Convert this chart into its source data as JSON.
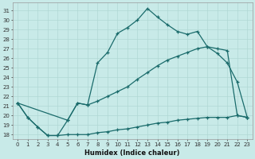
{
  "xlabel": "Humidex (Indice chaleur)",
  "bg_color": "#c8eae8",
  "line_color": "#1a6b6b",
  "grid_color": "#b0d8d4",
  "ylim": [
    17.5,
    31.8
  ],
  "xlim": [
    -0.5,
    23.5
  ],
  "yticks": [
    18,
    19,
    20,
    21,
    22,
    23,
    24,
    25,
    26,
    27,
    28,
    29,
    30,
    31
  ],
  "xticks": [
    0,
    1,
    2,
    3,
    4,
    5,
    6,
    7,
    8,
    9,
    10,
    11,
    12,
    13,
    14,
    15,
    16,
    17,
    18,
    19,
    20,
    21,
    22,
    23
  ],
  "line1_x": [
    0,
    1,
    2,
    3,
    4,
    5,
    6,
    7,
    8,
    9,
    10,
    11,
    12,
    13,
    14,
    15,
    16,
    17,
    18,
    19,
    20,
    21,
    22,
    23
  ],
  "line1_y": [
    21.3,
    19.8,
    18.8,
    17.9,
    17.9,
    18.0,
    18.0,
    18.0,
    18.2,
    18.3,
    18.5,
    18.6,
    18.8,
    19.0,
    19.2,
    19.3,
    19.5,
    19.6,
    19.7,
    19.8,
    19.8,
    19.8,
    20.0,
    19.8
  ],
  "line2_x": [
    0,
    1,
    2,
    3,
    4,
    5,
    6,
    7,
    8,
    9,
    10,
    11,
    12,
    13,
    14,
    15,
    16,
    17,
    18,
    19,
    20,
    21,
    22,
    23
  ],
  "line2_y": [
    21.3,
    19.8,
    18.8,
    17.9,
    17.9,
    19.5,
    21.3,
    21.1,
    25.5,
    26.6,
    28.6,
    29.2,
    30.0,
    31.2,
    30.3,
    29.5,
    28.8,
    28.5,
    28.8,
    27.2,
    26.5,
    25.5,
    23.5,
    19.8
  ],
  "line3_x": [
    0,
    5,
    6,
    7,
    8,
    9,
    10,
    11,
    12,
    13,
    14,
    15,
    16,
    17,
    18,
    19,
    20,
    21,
    22,
    23
  ],
  "line3_y": [
    21.3,
    19.5,
    21.3,
    21.1,
    21.5,
    22.0,
    22.5,
    23.0,
    23.8,
    24.5,
    25.2,
    25.8,
    26.2,
    26.6,
    27.0,
    27.2,
    27.0,
    26.8,
    20.0,
    19.8
  ]
}
